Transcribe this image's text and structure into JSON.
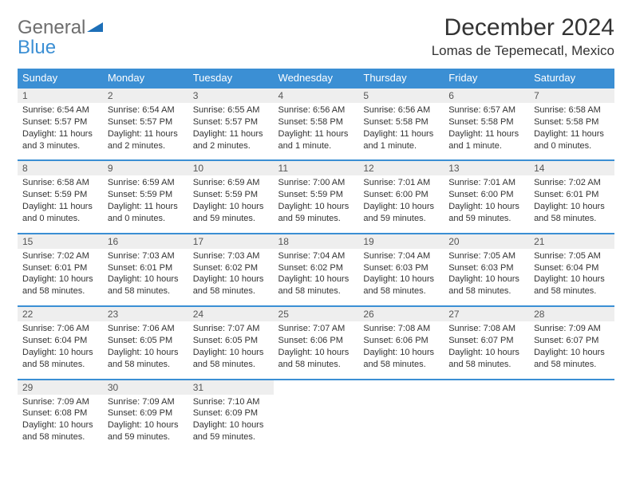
{
  "logo": {
    "line1": "General",
    "line2": "Blue"
  },
  "title": "December 2024",
  "location": "Lomas de Tepemecatl, Mexico",
  "colors": {
    "header_bg": "#3b8fd4",
    "header_text": "#ffffff",
    "daynum_bg": "#eeeeee",
    "border": "#3b8fd4",
    "text": "#333333",
    "logo_gray": "#6e6e6e",
    "logo_blue": "#3b8fd4"
  },
  "weekdays": [
    "Sunday",
    "Monday",
    "Tuesday",
    "Wednesday",
    "Thursday",
    "Friday",
    "Saturday"
  ],
  "weeks": [
    [
      {
        "n": "1",
        "sr": "Sunrise: 6:54 AM",
        "ss": "Sunset: 5:57 PM",
        "dl": "Daylight: 11 hours and 3 minutes."
      },
      {
        "n": "2",
        "sr": "Sunrise: 6:54 AM",
        "ss": "Sunset: 5:57 PM",
        "dl": "Daylight: 11 hours and 2 minutes."
      },
      {
        "n": "3",
        "sr": "Sunrise: 6:55 AM",
        "ss": "Sunset: 5:57 PM",
        "dl": "Daylight: 11 hours and 2 minutes."
      },
      {
        "n": "4",
        "sr": "Sunrise: 6:56 AM",
        "ss": "Sunset: 5:58 PM",
        "dl": "Daylight: 11 hours and 1 minute."
      },
      {
        "n": "5",
        "sr": "Sunrise: 6:56 AM",
        "ss": "Sunset: 5:58 PM",
        "dl": "Daylight: 11 hours and 1 minute."
      },
      {
        "n": "6",
        "sr": "Sunrise: 6:57 AM",
        "ss": "Sunset: 5:58 PM",
        "dl": "Daylight: 11 hours and 1 minute."
      },
      {
        "n": "7",
        "sr": "Sunrise: 6:58 AM",
        "ss": "Sunset: 5:58 PM",
        "dl": "Daylight: 11 hours and 0 minutes."
      }
    ],
    [
      {
        "n": "8",
        "sr": "Sunrise: 6:58 AM",
        "ss": "Sunset: 5:59 PM",
        "dl": "Daylight: 11 hours and 0 minutes."
      },
      {
        "n": "9",
        "sr": "Sunrise: 6:59 AM",
        "ss": "Sunset: 5:59 PM",
        "dl": "Daylight: 11 hours and 0 minutes."
      },
      {
        "n": "10",
        "sr": "Sunrise: 6:59 AM",
        "ss": "Sunset: 5:59 PM",
        "dl": "Daylight: 10 hours and 59 minutes."
      },
      {
        "n": "11",
        "sr": "Sunrise: 7:00 AM",
        "ss": "Sunset: 5:59 PM",
        "dl": "Daylight: 10 hours and 59 minutes."
      },
      {
        "n": "12",
        "sr": "Sunrise: 7:01 AM",
        "ss": "Sunset: 6:00 PM",
        "dl": "Daylight: 10 hours and 59 minutes."
      },
      {
        "n": "13",
        "sr": "Sunrise: 7:01 AM",
        "ss": "Sunset: 6:00 PM",
        "dl": "Daylight: 10 hours and 59 minutes."
      },
      {
        "n": "14",
        "sr": "Sunrise: 7:02 AM",
        "ss": "Sunset: 6:01 PM",
        "dl": "Daylight: 10 hours and 58 minutes."
      }
    ],
    [
      {
        "n": "15",
        "sr": "Sunrise: 7:02 AM",
        "ss": "Sunset: 6:01 PM",
        "dl": "Daylight: 10 hours and 58 minutes."
      },
      {
        "n": "16",
        "sr": "Sunrise: 7:03 AM",
        "ss": "Sunset: 6:01 PM",
        "dl": "Daylight: 10 hours and 58 minutes."
      },
      {
        "n": "17",
        "sr": "Sunrise: 7:03 AM",
        "ss": "Sunset: 6:02 PM",
        "dl": "Daylight: 10 hours and 58 minutes."
      },
      {
        "n": "18",
        "sr": "Sunrise: 7:04 AM",
        "ss": "Sunset: 6:02 PM",
        "dl": "Daylight: 10 hours and 58 minutes."
      },
      {
        "n": "19",
        "sr": "Sunrise: 7:04 AM",
        "ss": "Sunset: 6:03 PM",
        "dl": "Daylight: 10 hours and 58 minutes."
      },
      {
        "n": "20",
        "sr": "Sunrise: 7:05 AM",
        "ss": "Sunset: 6:03 PM",
        "dl": "Daylight: 10 hours and 58 minutes."
      },
      {
        "n": "21",
        "sr": "Sunrise: 7:05 AM",
        "ss": "Sunset: 6:04 PM",
        "dl": "Daylight: 10 hours and 58 minutes."
      }
    ],
    [
      {
        "n": "22",
        "sr": "Sunrise: 7:06 AM",
        "ss": "Sunset: 6:04 PM",
        "dl": "Daylight: 10 hours and 58 minutes."
      },
      {
        "n": "23",
        "sr": "Sunrise: 7:06 AM",
        "ss": "Sunset: 6:05 PM",
        "dl": "Daylight: 10 hours and 58 minutes."
      },
      {
        "n": "24",
        "sr": "Sunrise: 7:07 AM",
        "ss": "Sunset: 6:05 PM",
        "dl": "Daylight: 10 hours and 58 minutes."
      },
      {
        "n": "25",
        "sr": "Sunrise: 7:07 AM",
        "ss": "Sunset: 6:06 PM",
        "dl": "Daylight: 10 hours and 58 minutes."
      },
      {
        "n": "26",
        "sr": "Sunrise: 7:08 AM",
        "ss": "Sunset: 6:06 PM",
        "dl": "Daylight: 10 hours and 58 minutes."
      },
      {
        "n": "27",
        "sr": "Sunrise: 7:08 AM",
        "ss": "Sunset: 6:07 PM",
        "dl": "Daylight: 10 hours and 58 minutes."
      },
      {
        "n": "28",
        "sr": "Sunrise: 7:09 AM",
        "ss": "Sunset: 6:07 PM",
        "dl": "Daylight: 10 hours and 58 minutes."
      }
    ],
    [
      {
        "n": "29",
        "sr": "Sunrise: 7:09 AM",
        "ss": "Sunset: 6:08 PM",
        "dl": "Daylight: 10 hours and 58 minutes."
      },
      {
        "n": "30",
        "sr": "Sunrise: 7:09 AM",
        "ss": "Sunset: 6:09 PM",
        "dl": "Daylight: 10 hours and 59 minutes."
      },
      {
        "n": "31",
        "sr": "Sunrise: 7:10 AM",
        "ss": "Sunset: 6:09 PM",
        "dl": "Daylight: 10 hours and 59 minutes."
      },
      null,
      null,
      null,
      null
    ]
  ]
}
